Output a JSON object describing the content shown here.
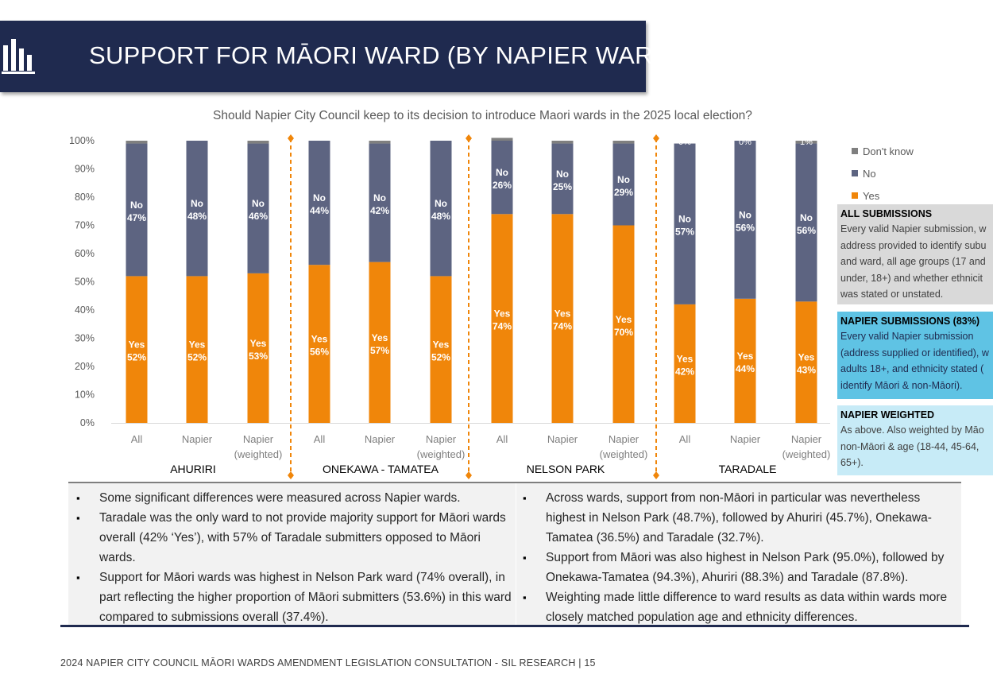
{
  "header": {
    "title": "SUPPORT FOR MĀORI WARD (BY NAPIER WARD)",
    "icon": "bar-chart-icon"
  },
  "chart_data": {
    "type": "bar",
    "stacked": true,
    "title": "Should Napier City Council keep to its decision to introduce Maori wards in the 2025 local election?",
    "ylim": [
      0,
      100
    ],
    "yticks": [
      "0%",
      "10%",
      "20%",
      "30%",
      "40%",
      "50%",
      "60%",
      "70%",
      "80%",
      "90%",
      "100%"
    ],
    "groups": [
      "AHURIRI",
      "ONEKAWA - TAMATEA",
      "NELSON PARK",
      "TARADALE"
    ],
    "categories": [
      [
        "All"
      ],
      [
        "Napier"
      ],
      [
        "Napier",
        "(weighted)"
      ],
      [
        "All"
      ],
      [
        "Napier"
      ],
      [
        "Napier",
        "(weighted)"
      ],
      [
        "All"
      ],
      [
        "Napier"
      ],
      [
        "Napier",
        "(weighted)"
      ],
      [
        "All"
      ],
      [
        "Napier"
      ],
      [
        "Napier",
        "(weighted)"
      ]
    ],
    "series": [
      {
        "name": "Yes",
        "color": "#f0860a",
        "values": [
          52,
          52,
          53,
          56,
          57,
          52,
          74,
          74,
          70,
          42,
          44,
          43
        ],
        "labels": [
          "52%",
          "52%",
          "53%",
          "56%",
          "57%",
          "52%",
          "74%",
          "74%",
          "70%",
          "42%",
          "44%",
          "43%"
        ]
      },
      {
        "name": "No",
        "color": "#5d6481",
        "values": [
          47,
          48,
          46,
          44,
          42,
          48,
          26,
          25,
          29,
          57,
          56,
          56
        ],
        "labels": [
          "47%",
          "48%",
          "46%",
          "44%",
          "42%",
          "48%",
          "26%",
          "25%",
          "29%",
          "57%",
          "56%",
          "56%"
        ]
      },
      {
        "name": "Don't know",
        "color": "#7f7f7f",
        "values": [
          1,
          0,
          1,
          0,
          1,
          0,
          1,
          1,
          1,
          0,
          0,
          1
        ],
        "labels": [
          "",
          "",
          "",
          "",
          "",
          "",
          "",
          "",
          "",
          "0%",
          "0%",
          "1%"
        ]
      }
    ],
    "grid": false,
    "legend_position": "right"
  },
  "notes": [
    {
      "title": "ALL SUBMISSIONS",
      "lines": [
        "Every valid Napier submission, w",
        "address provided to identify subu",
        "and ward, all age groups (17 and",
        "under, 18+) and whether ethnicit",
        "was stated or unstated."
      ],
      "color": "#d9d9d9"
    },
    {
      "title": "NAPIER SUBMISSIONS (83%)",
      "lines": [
        "Every valid Napier submission",
        "(address supplied or identified), w",
        "adults 18+, and ethnicity stated (",
        "identify Māori & non-Māori)."
      ],
      "color": "#5fc3e4"
    },
    {
      "title": "NAPIER WEIGHTED",
      "lines": [
        "As above. Also weighted by Māo",
        "non-Māori & age (18-44, 45-64,",
        "65+)."
      ],
      "color": "#c7ebf7"
    }
  ],
  "bullets_left": [
    "Some significant differences were measured across Napier wards.",
    "Taradale was the only ward to not provide majority support for Māori wards overall (42% ‘Yes’), with 57% of Taradale submitters opposed to Māori wards.",
    "Support for Māori wards was highest in Nelson Park ward (74% overall), in part reflecting the higher proportion of Māori submitters (53.6%) in this ward compared to submissions overall (37.4%)."
  ],
  "bullets_right": [
    "Across wards, support from non-Māori in particular was nevertheless highest in Nelson Park (48.7%), followed by Ahuriri (45.7%), Onekawa-Tamatea (36.5%) and Taradale (32.7%).",
    "Support from Māori was also highest in Nelson Park (95.0%), followed by Onekawa-Tamatea (94.3%), Ahuriri (88.3%) and Taradale (87.8%).",
    "Weighting made little difference to ward results as data within wards more closely matched population age and ethnicity differences."
  ],
  "footer": "2024 NAPIER CITY COUNCIL MĀORI WARDS AMENDMENT LEGISLATION CONSULTATION - SIL RESEARCH | 15"
}
